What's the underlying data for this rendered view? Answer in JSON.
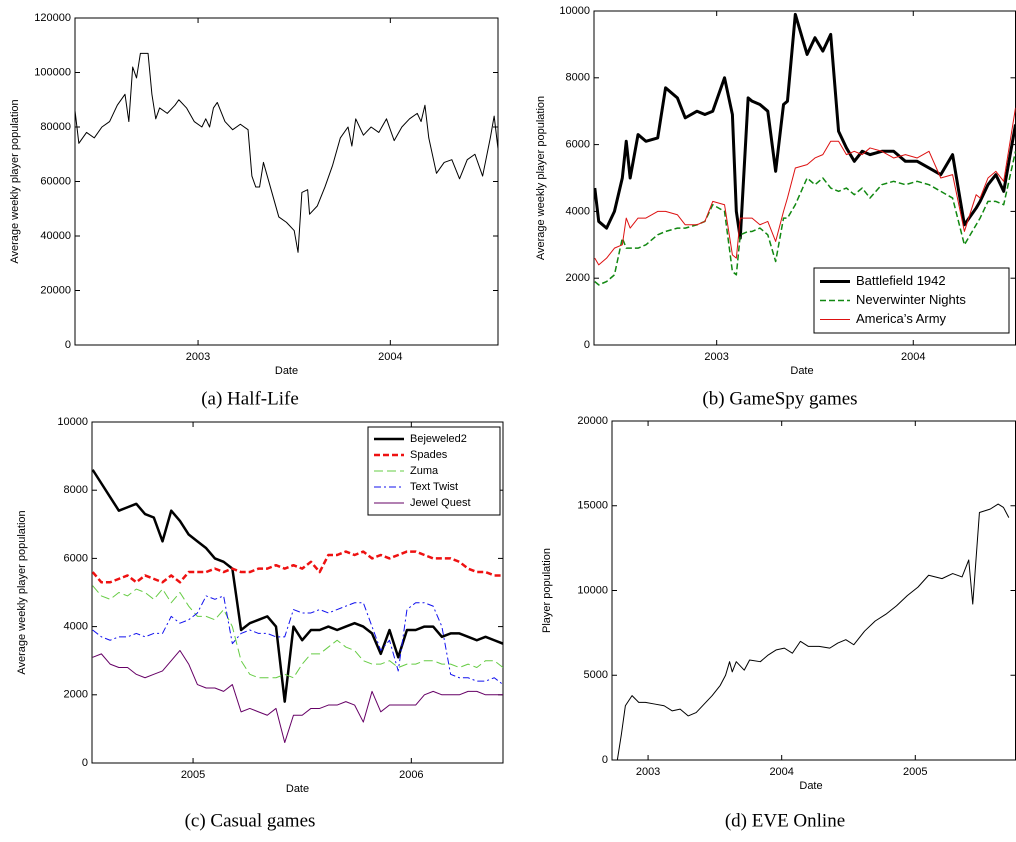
{
  "chart_data": [
    {
      "type": "line",
      "caption": "(a) Half-Life",
      "xlabel": "Date",
      "ylabel": "Average weekly player population",
      "xlim": [
        2002.36,
        2004.56
      ],
      "xticks": [
        2003,
        2004
      ],
      "ylim": [
        0,
        120000
      ],
      "yticks": [
        0,
        20000,
        40000,
        60000,
        80000,
        100000,
        120000
      ],
      "x": [
        2002.36,
        2002.38,
        2002.42,
        2002.46,
        2002.5,
        2002.54,
        2002.58,
        2002.62,
        2002.64,
        2002.66,
        2002.68,
        2002.7,
        2002.74,
        2002.76,
        2002.78,
        2002.8,
        2002.84,
        2002.88,
        2002.9,
        2002.94,
        2002.98,
        2003.02,
        2003.04,
        2003.06,
        2003.08,
        2003.1,
        2003.14,
        2003.18,
        2003.22,
        2003.26,
        2003.28,
        2003.3,
        2003.32,
        2003.34,
        2003.38,
        2003.42,
        2003.46,
        2003.5,
        2003.52,
        2003.54,
        2003.57,
        2003.58,
        2003.62,
        2003.66,
        2003.7,
        2003.74,
        2003.78,
        2003.8,
        2003.82,
        2003.86,
        2003.9,
        2003.94,
        2003.98,
        2004.02,
        2004.06,
        2004.1,
        2004.14,
        2004.16,
        2004.18,
        2004.2,
        2004.24,
        2004.28,
        2004.32,
        2004.36,
        2004.4,
        2004.44,
        2004.48,
        2004.52,
        2004.54,
        2004.56
      ],
      "series": [
        {
          "color": "#000000",
          "linewidth": 1,
          "style": "solid",
          "values": [
            86000,
            74000,
            78000,
            76000,
            80000,
            82000,
            88000,
            92000,
            82000,
            102000,
            98000,
            107000,
            107000,
            92000,
            83000,
            87000,
            85000,
            88000,
            90000,
            87000,
            82000,
            80000,
            83000,
            80000,
            87000,
            89000,
            82000,
            79000,
            81000,
            79000,
            62000,
            58000,
            58000,
            67000,
            57000,
            47000,
            45000,
            42000,
            34000,
            56000,
            57000,
            48000,
            51000,
            58000,
            66000,
            76000,
            80000,
            73000,
            83000,
            77000,
            80000,
            78000,
            83000,
            75000,
            80000,
            83000,
            85000,
            82000,
            88000,
            76000,
            63000,
            67000,
            68000,
            61000,
            68000,
            70000,
            62000,
            76000,
            84000,
            72000
          ]
        }
      ]
    },
    {
      "type": "line",
      "caption": "(b) GameSpy games",
      "xlabel": "Date",
      "ylabel": "Average weekly player population",
      "xlim": [
        2002.376,
        2004.52
      ],
      "xticks": [
        2003,
        2004
      ],
      "ylim": [
        0,
        10000
      ],
      "yticks": [
        0,
        2000,
        4000,
        6000,
        8000,
        10000
      ],
      "legend": "lower right",
      "x": [
        2002.38,
        2002.4,
        2002.44,
        2002.48,
        2002.52,
        2002.54,
        2002.56,
        2002.6,
        2002.64,
        2002.7,
        2002.74,
        2002.8,
        2002.84,
        2002.9,
        2002.94,
        2002.98,
        2003.04,
        2003.08,
        2003.1,
        2003.12,
        2003.16,
        2003.18,
        2003.22,
        2003.26,
        2003.3,
        2003.34,
        2003.36,
        2003.4,
        2003.46,
        2003.5,
        2003.54,
        2003.58,
        2003.62,
        2003.66,
        2003.7,
        2003.74,
        2003.78,
        2003.84,
        2003.9,
        2003.96,
        2004.02,
        2004.08,
        2004.14,
        2004.2,
        2004.26,
        2004.32,
        2004.34,
        2004.38,
        2004.42,
        2004.46,
        2004.52
      ],
      "series": [
        {
          "name": "Battlefield 1942",
          "color": "#000000",
          "linewidth": 3,
          "style": "solid",
          "values": [
            4700,
            3700,
            3500,
            4000,
            5000,
            6100,
            5000,
            6300,
            6100,
            6200,
            7700,
            7400,
            6800,
            7000,
            6900,
            7000,
            8000,
            6900,
            4000,
            3200,
            7400,
            7300,
            7200,
            7000,
            5200,
            7200,
            7300,
            9900,
            8700,
            9200,
            8800,
            9300,
            6400,
            5900,
            5500,
            5800,
            5700,
            5800,
            5800,
            5500,
            5500,
            5300,
            5100,
            5700,
            3600,
            4100,
            4300,
            4800,
            5100,
            4600,
            6600
          ]
        },
        {
          "name": "Neverwinter Nights",
          "color": "#118811",
          "linewidth": 1.5,
          "style": "dashed",
          "values": [
            1900,
            1800,
            1900,
            2100,
            3200,
            2900,
            2900,
            2900,
            3000,
            3300,
            3400,
            3500,
            3500,
            3600,
            3700,
            4200,
            4000,
            2200,
            2100,
            3300,
            3400,
            3400,
            3500,
            3300,
            2500,
            3800,
            3800,
            4200,
            5000,
            4800,
            5000,
            4700,
            4600,
            4700,
            4500,
            4700,
            4400,
            4800,
            4900,
            4800,
            4900,
            4800,
            4600,
            4400,
            3000,
            3600,
            3800,
            4300,
            4300,
            4200,
            5800
          ]
        },
        {
          "name": "America’s Army",
          "color": "#dd1111",
          "linewidth": 1,
          "style": "solid",
          "values": [
            2600,
            2400,
            2600,
            2900,
            3000,
            3800,
            3500,
            3800,
            3800,
            4000,
            4000,
            3900,
            3600,
            3600,
            3700,
            4300,
            4200,
            2700,
            2600,
            3800,
            3800,
            3800,
            3600,
            3700,
            3100,
            4000,
            4400,
            5300,
            5400,
            5600,
            5700,
            6100,
            6100,
            5700,
            5800,
            5700,
            5900,
            5800,
            5600,
            5700,
            5600,
            5800,
            5000,
            5100,
            3400,
            4500,
            4400,
            5000,
            5200,
            4900,
            7100
          ]
        }
      ]
    },
    {
      "type": "line",
      "caption": "(c) Casual games",
      "xlabel": "Date",
      "ylabel": "Average weekly player population",
      "xlim": [
        2004.537,
        2006.42
      ],
      "xticks": [
        2005,
        2006
      ],
      "ylim": [
        0,
        10000
      ],
      "yticks": [
        0,
        2000,
        4000,
        6000,
        8000,
        10000
      ],
      "legend": "upper right",
      "x": [
        2004.54,
        2004.58,
        2004.62,
        2004.66,
        2004.7,
        2004.74,
        2004.78,
        2004.82,
        2004.86,
        2004.9,
        2004.94,
        2004.98,
        2005.02,
        2005.06,
        2005.1,
        2005.14,
        2005.18,
        2005.22,
        2005.26,
        2005.3,
        2005.34,
        2005.38,
        2005.42,
        2005.46,
        2005.5,
        2005.54,
        2005.58,
        2005.62,
        2005.66,
        2005.7,
        2005.74,
        2005.78,
        2005.82,
        2005.86,
        2005.9,
        2005.94,
        2005.98,
        2006.02,
        2006.06,
        2006.1,
        2006.14,
        2006.18,
        2006.22,
        2006.26,
        2006.3,
        2006.34,
        2006.38,
        2006.42
      ],
      "series": [
        {
          "name": "Bejeweled2",
          "color": "#000000",
          "linewidth": 2.5,
          "style": "solid",
          "values": [
            8600,
            8200,
            7800,
            7400,
            7500,
            7600,
            7300,
            7200,
            6500,
            7400,
            7100,
            6700,
            6500,
            6300,
            6000,
            5900,
            5700,
            3900,
            4100,
            4200,
            4300,
            4000,
            1800,
            4000,
            3600,
            3900,
            3900,
            4000,
            3900,
            4000,
            4100,
            4000,
            3800,
            3200,
            3900,
            3100,
            3900,
            3900,
            4000,
            4000,
            3700,
            3800,
            3800,
            3700,
            3600,
            3700,
            3600,
            3500
          ]
        },
        {
          "name": "Spades",
          "color": "#ee1111",
          "linewidth": 2.5,
          "style": "dashed",
          "values": [
            5600,
            5300,
            5300,
            5400,
            5500,
            5300,
            5500,
            5400,
            5300,
            5500,
            5300,
            5600,
            5600,
            5600,
            5700,
            5600,
            5700,
            5600,
            5600,
            5700,
            5700,
            5800,
            5700,
            5800,
            5700,
            5900,
            5600,
            6100,
            6100,
            6200,
            6100,
            6200,
            6000,
            6100,
            6000,
            6100,
            6200,
            6200,
            6100,
            6000,
            6000,
            6000,
            5900,
            5700,
            5600,
            5600,
            5500,
            5500
          ]
        },
        {
          "name": "Zuma",
          "color": "#66cc44",
          "linewidth": 1,
          "style": "longdash",
          "values": [
            5200,
            4900,
            4800,
            5000,
            4900,
            5100,
            5000,
            4800,
            5100,
            4700,
            5000,
            4600,
            4300,
            4300,
            4200,
            4500,
            4000,
            3000,
            2600,
            2500,
            2500,
            2500,
            2600,
            2500,
            2900,
            3200,
            3200,
            3400,
            3600,
            3400,
            3300,
            3000,
            2900,
            2900,
            3000,
            2800,
            2900,
            2900,
            3000,
            3000,
            2900,
            2900,
            2800,
            2900,
            2800,
            3000,
            3000,
            2800
          ]
        },
        {
          "name": "Text Twist",
          "color": "#1111ee",
          "linewidth": 1,
          "style": "dashdot",
          "values": [
            3900,
            3700,
            3600,
            3700,
            3700,
            3800,
            3700,
            3800,
            3800,
            4300,
            4100,
            4200,
            4400,
            4900,
            4800,
            4900,
            3500,
            3800,
            3900,
            3800,
            3800,
            3700,
            3700,
            4500,
            4400,
            4400,
            4500,
            4400,
            4500,
            4600,
            4700,
            4700,
            4000,
            3300,
            3600,
            2700,
            4500,
            4700,
            4700,
            4600,
            4000,
            2600,
            2500,
            2500,
            2400,
            2400,
            2500,
            2300
          ]
        },
        {
          "name": "Jewel Quest",
          "color": "#660066",
          "linewidth": 1,
          "style": "solid",
          "values": [
            3100,
            3200,
            2900,
            2800,
            2800,
            2600,
            2500,
            2600,
            2700,
            3000,
            3300,
            2900,
            2300,
            2200,
            2200,
            2100,
            2300,
            1500,
            1600,
            1500,
            1400,
            1600,
            600,
            1400,
            1400,
            1600,
            1600,
            1700,
            1700,
            1800,
            1700,
            1200,
            2100,
            1500,
            1700,
            1700,
            1700,
            1700,
            2000,
            2100,
            2000,
            2000,
            2000,
            2100,
            2100,
            2000,
            2000,
            2000
          ]
        }
      ]
    },
    {
      "type": "line",
      "caption": "(d) EVE Online",
      "xlabel": "Date",
      "ylabel": "Player population",
      "xlim": [
        2002.73,
        2005.75
      ],
      "xticks": [
        2003,
        2004,
        2005
      ],
      "ylim": [
        0,
        20000
      ],
      "yticks": [
        0,
        5000,
        10000,
        15000,
        20000
      ],
      "x": [
        2002.77,
        2002.8,
        2002.83,
        2002.88,
        2002.93,
        2002.98,
        2003.05,
        2003.12,
        2003.18,
        2003.24,
        2003.3,
        2003.36,
        2003.42,
        2003.48,
        2003.54,
        2003.58,
        2003.61,
        2003.63,
        2003.66,
        2003.72,
        2003.76,
        2003.84,
        2003.9,
        2003.96,
        2004.02,
        2004.08,
        2004.14,
        2004.2,
        2004.28,
        2004.36,
        2004.42,
        2004.48,
        2004.54,
        2004.62,
        2004.7,
        2004.78,
        2004.86,
        2004.94,
        2005.02,
        2005.1,
        2005.2,
        2005.28,
        2005.35,
        2005.4,
        2005.43,
        2005.48,
        2005.56,
        2005.62,
        2005.66,
        2005.7
      ],
      "series": [
        {
          "color": "#000000",
          "linewidth": 1,
          "style": "solid",
          "values": [
            0,
            1500,
            3200,
            3800,
            3400,
            3400,
            3300,
            3200,
            2900,
            3000,
            2600,
            2800,
            3300,
            3800,
            4400,
            5000,
            5800,
            5200,
            5800,
            5300,
            5900,
            5800,
            6200,
            6500,
            6600,
            6300,
            7000,
            6700,
            6700,
            6600,
            6900,
            7100,
            6800,
            7600,
            8200,
            8600,
            9100,
            9700,
            10200,
            10900,
            10700,
            11000,
            10800,
            11800,
            9200,
            14600,
            14800,
            15100,
            14900,
            14300
          ]
        }
      ]
    }
  ]
}
